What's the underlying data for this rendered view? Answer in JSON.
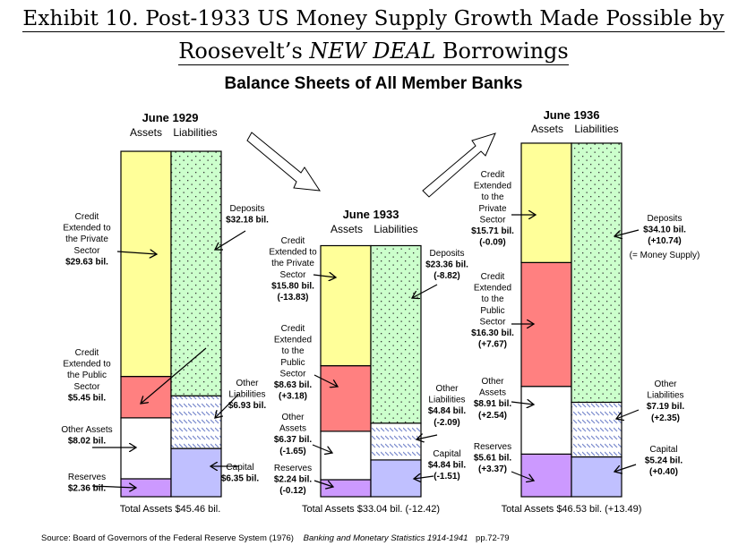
{
  "header": {
    "title_line1": "Exhibit 10. Post-1933 US Money Supply Growth Made Possible by",
    "title_line2_prefix": "Roosevelt’s ",
    "title_line2_italic": "NEW DEAL",
    "title_line2_suffix": " Borrowings",
    "subtitle": "Balance Sheets of All Member Banks"
  },
  "source": {
    "prefix": "Source: Board of Governors of the Federal Reserve System (1976)",
    "book": "Banking and Monetary Statistics 1914-1941",
    "pages": "pp.72-79"
  },
  "chart_data": {
    "type": "stacked-bar",
    "title": "Balance Sheets of All Member Banks",
    "units": "billions USD",
    "column_labels": [
      "Assets",
      "Liabilities"
    ],
    "colors": {
      "credit_private": "#ffff99",
      "credit_public": "#ff8080",
      "other_assets": "#ffffff",
      "reserves": "#cc99ff",
      "deposits": "#ccffcc",
      "other_liabilities": "#ffffff",
      "capital": "#c0c0ff",
      "hatch": "#6677cc"
    },
    "periods": [
      {
        "name": "June 1929",
        "total_label": "Total Assets $45.46 bil.",
        "total": 45.46,
        "assets": [
          {
            "key": "credit_private",
            "value": 29.63,
            "label": [
              "Credit",
              "Extended to",
              "the Private",
              "Sector"
            ],
            "value_label": "$29.63 bil.",
            "change": ""
          },
          {
            "key": "credit_public",
            "value": 5.45,
            "label": [
              "Credit",
              "Extended to",
              "the Public",
              "Sector"
            ],
            "value_label": "$5.45 bil.",
            "change": ""
          },
          {
            "key": "other_assets",
            "value": 8.02,
            "label": [
              "Other Assets"
            ],
            "value_label": "$8.02 bil.",
            "change": ""
          },
          {
            "key": "reserves",
            "value": 2.36,
            "label": [
              "Reserves"
            ],
            "value_label": "$2.36 bil.",
            "change": ""
          }
        ],
        "liabilities": [
          {
            "key": "deposits",
            "value": 32.18,
            "label": [
              "Deposits"
            ],
            "value_label": "$32.18 bil.",
            "change": ""
          },
          {
            "key": "other_liabilities",
            "value": 6.93,
            "label": [
              "Other",
              "Liabilities"
            ],
            "value_label": "$6.93 bil.",
            "change": ""
          },
          {
            "key": "capital",
            "value": 6.35,
            "label": [
              "Capital"
            ],
            "value_label": "$6.35 bil.",
            "change": ""
          }
        ]
      },
      {
        "name": "June 1933",
        "total_label": "Total Assets $33.04 bil. (-12.42)",
        "total": 33.04,
        "assets": [
          {
            "key": "credit_private",
            "value": 15.8,
            "label": [
              "Credit",
              "Extended to",
              "the Private",
              "Sector"
            ],
            "value_label": "$15.80 bil.",
            "change": "(-13.83)"
          },
          {
            "key": "credit_public",
            "value": 8.63,
            "label": [
              "Credit",
              "Extended",
              "to the",
              "Public",
              "Sector"
            ],
            "value_label": "$8.63 bil.",
            "change": "(+3.18)"
          },
          {
            "key": "other_assets",
            "value": 6.37,
            "label": [
              "Other",
              "Assets"
            ],
            "value_label": "$6.37 bil.",
            "change": "(-1.65)"
          },
          {
            "key": "reserves",
            "value": 2.24,
            "label": [
              "Reserves"
            ],
            "value_label": "$2.24 bil.",
            "change": "(-0.12)"
          }
        ],
        "liabilities": [
          {
            "key": "deposits",
            "value": 23.36,
            "label": [
              "Deposits"
            ],
            "value_label": "$23.36 bil.",
            "change": "(-8.82)"
          },
          {
            "key": "other_liabilities",
            "value": 4.84,
            "label": [
              "Other",
              "Liabilities"
            ],
            "value_label": "$4.84 bil.",
            "change": "(-2.09)"
          },
          {
            "key": "capital",
            "value": 4.84,
            "label": [
              "Capital"
            ],
            "value_label": "$4.84 bil.",
            "change": "(-1.51)"
          }
        ]
      },
      {
        "name": "June 1936",
        "total_label": "Total Assets $46.53 bil. (+13.49)",
        "total": 46.53,
        "assets": [
          {
            "key": "credit_private",
            "value": 15.71,
            "label": [
              "Credit",
              "Extended",
              "to the",
              "Private",
              "Sector"
            ],
            "value_label": "$15.71 bil.",
            "change": "(-0.09)"
          },
          {
            "key": "credit_public",
            "value": 16.3,
            "label": [
              "Credit",
              "Extended",
              "to the",
              "Public",
              "Sector"
            ],
            "value_label": "$16.30 bil.",
            "change": "(+7.67)"
          },
          {
            "key": "other_assets",
            "value": 8.91,
            "label": [
              "Other",
              "Assets"
            ],
            "value_label": "$8.91 bil.",
            "change": "(+2.54)"
          },
          {
            "key": "reserves",
            "value": 5.61,
            "label": [
              "Reserves"
            ],
            "value_label": "$5.61 bil.",
            "change": "(+3.37)"
          }
        ],
        "liabilities": [
          {
            "key": "deposits",
            "value": 34.1,
            "label": [
              "Deposits"
            ],
            "value_label": "$34.10 bil.",
            "change": "(+10.74)",
            "note": "(= Money Supply)"
          },
          {
            "key": "other_liabilities",
            "value": 7.19,
            "label": [
              "Other",
              "Liabilities"
            ],
            "value_label": "$7.19 bil.",
            "change": "(+2.35)"
          },
          {
            "key": "capital",
            "value": 5.24,
            "label": [
              "Capital"
            ],
            "value_label": "$5.24 bil.",
            "change": "(+0.40)"
          }
        ]
      }
    ],
    "transition_arrows": [
      "June 1929 → June 1933 (down)",
      "June 1933 → June 1936 (up)"
    ]
  }
}
